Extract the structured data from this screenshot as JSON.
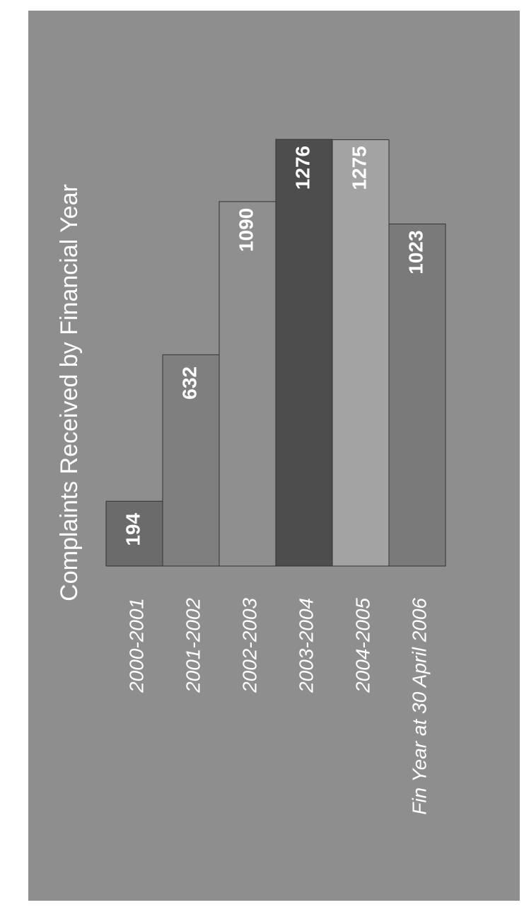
{
  "chart_data": {
    "type": "bar",
    "title": "Complaints Received by Financial Year",
    "categories": [
      "2000-2001",
      "2001-2002",
      "2002-2003",
      "2003-2004",
      "2004-2005",
      "Fin Year at 30 April 2006"
    ],
    "values": [
      194,
      632,
      1090,
      1276,
      1275,
      1023
    ],
    "colors": [
      "#6b6b6b",
      "#7f7f7f",
      "#8f8f8f",
      "#4d4d4d",
      "#a3a3a3",
      "#7a7a7a"
    ]
  }
}
